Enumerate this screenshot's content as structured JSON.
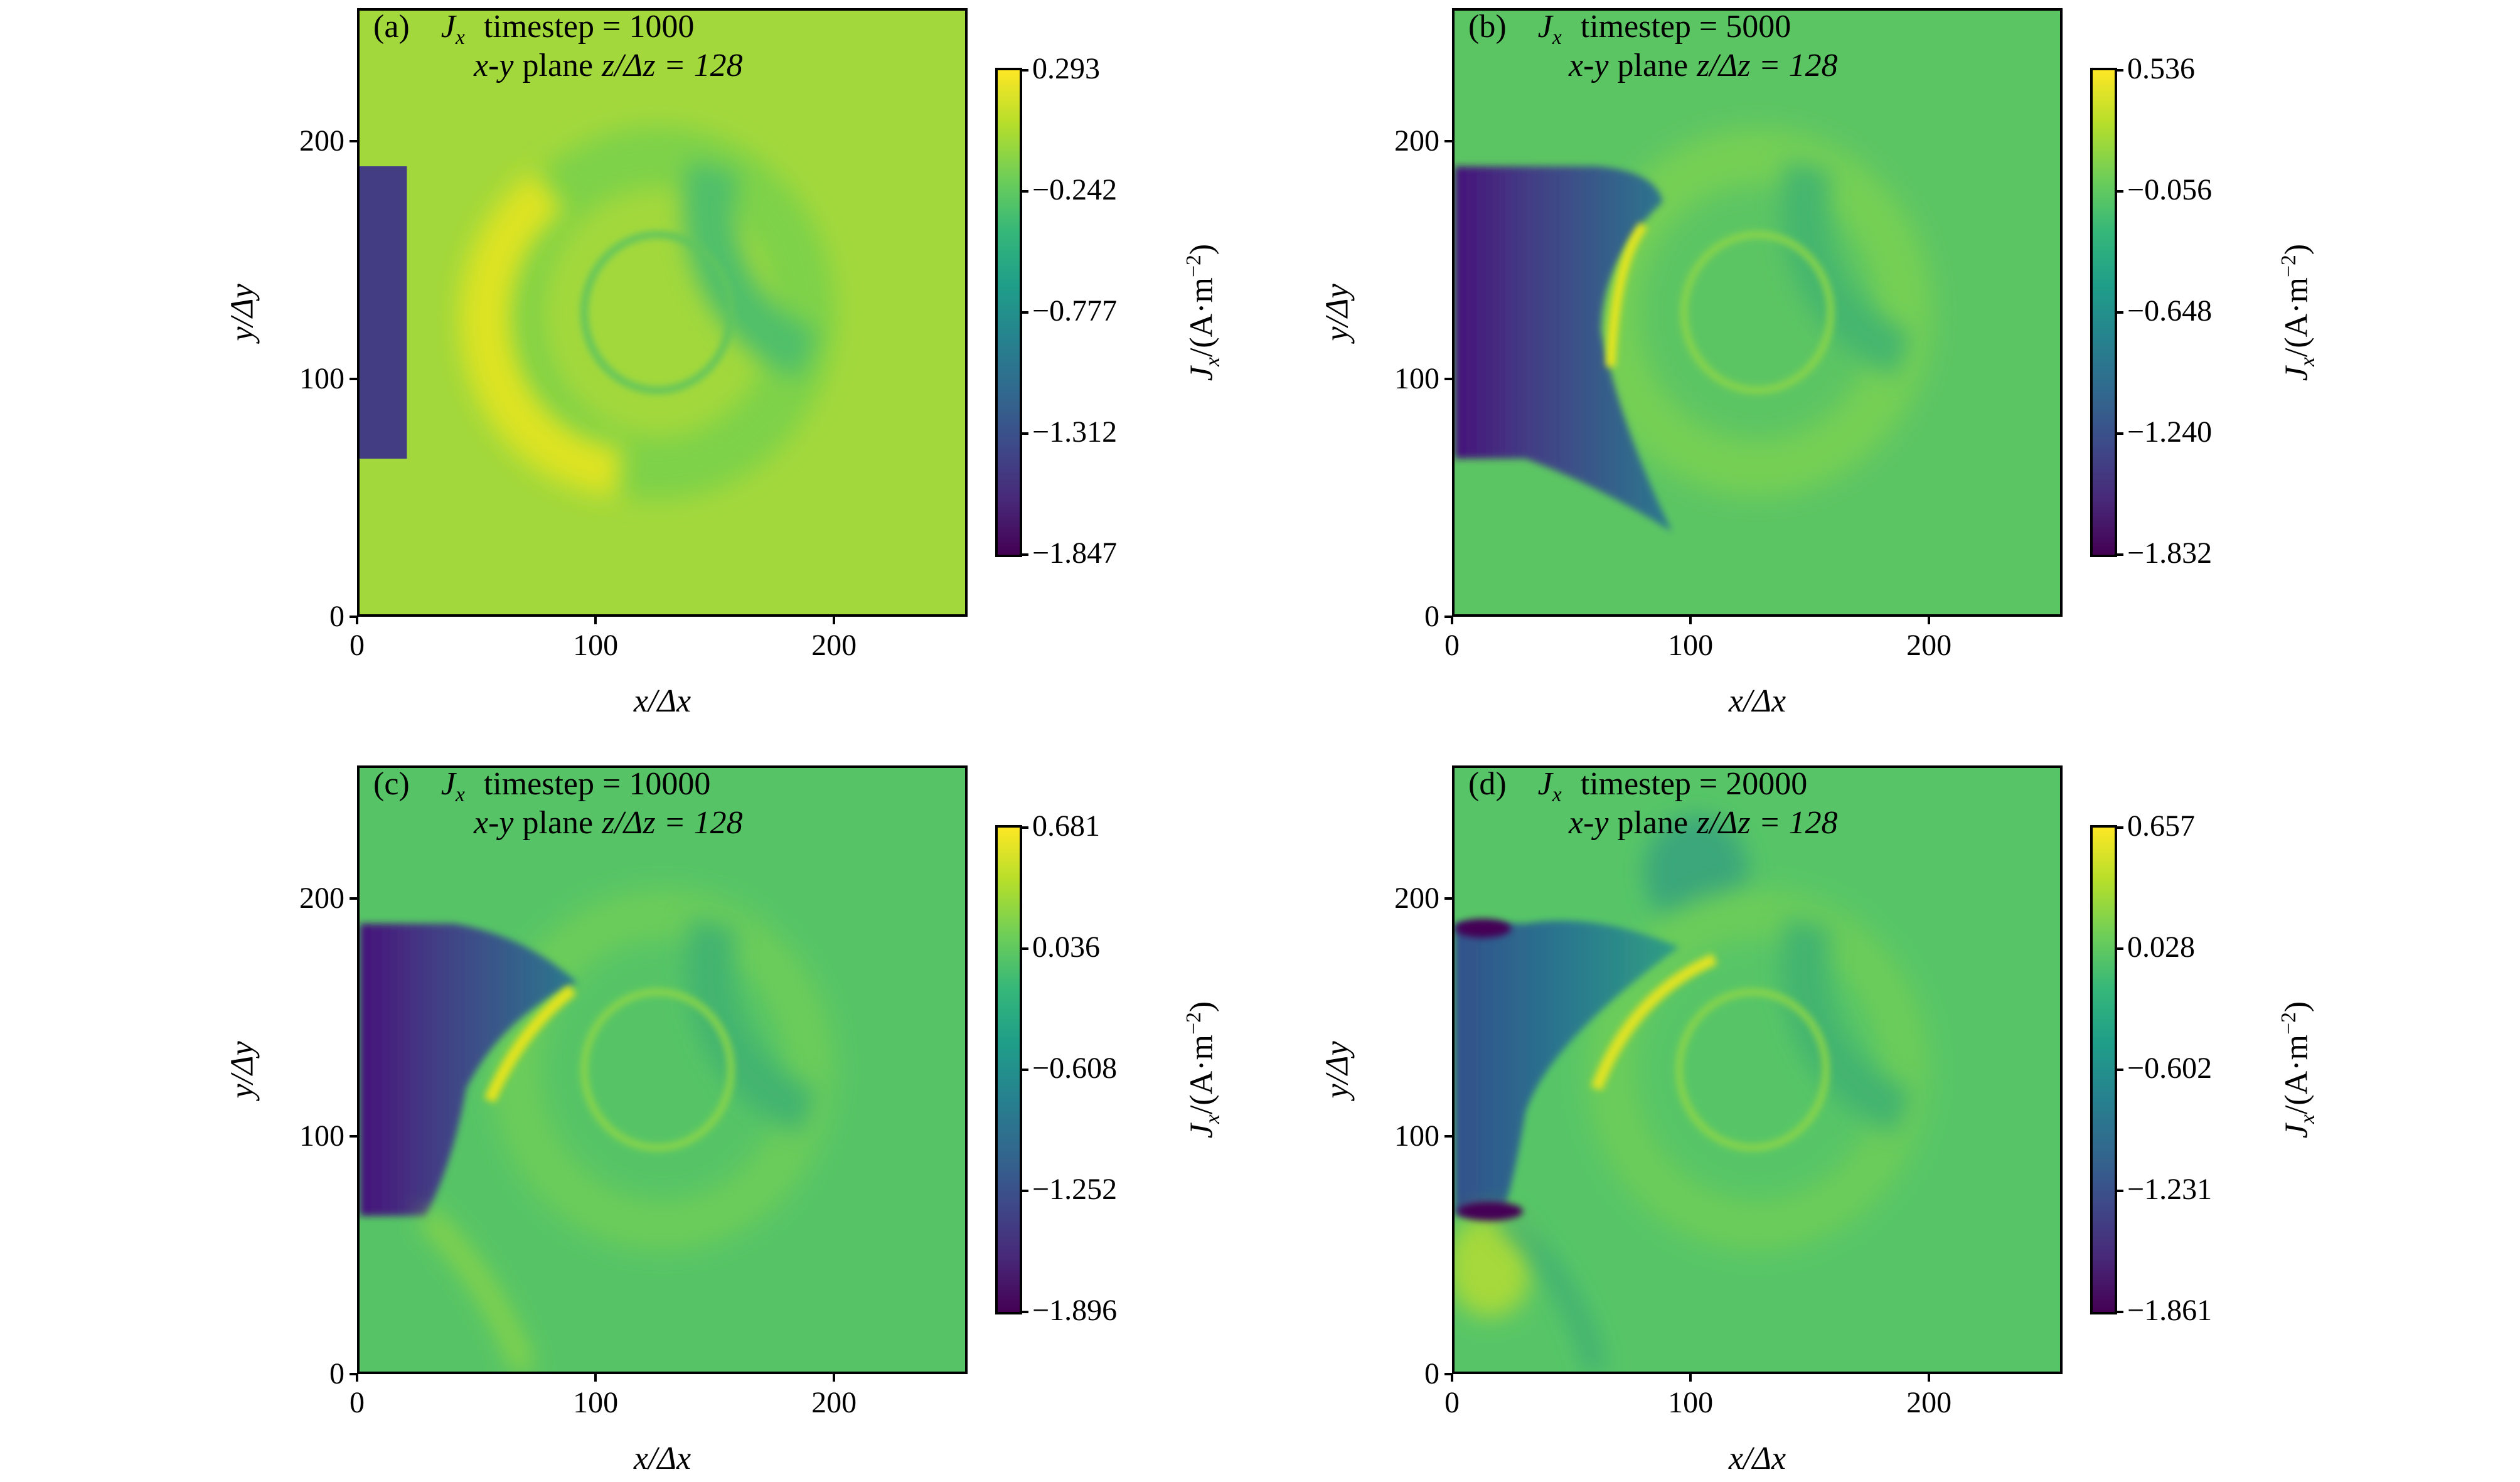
{
  "chart_data": [
    {
      "type": "heatmap",
      "panel": "(a)",
      "quantity": "J",
      "quantity_sub": "x",
      "timestep": "timestep = 1000",
      "plane_prefix": "x",
      "plane_mid": "-",
      "plane_suffix": "y",
      "plane_word": "plane",
      "slice": "z/Δz = 128",
      "xlabel": "x/Δx",
      "ylabel": "y/Δy",
      "xlim": [
        0,
        256
      ],
      "ylim": [
        0,
        256
      ],
      "xticks": [
        "0",
        "100",
        "200"
      ],
      "yticks": [
        "0",
        "100",
        "200"
      ],
      "colorbar": {
        "label_main": "J",
        "label_sub": "x",
        "label_rest": "/(A·m",
        "label_sup": "−2",
        "label_close": ")",
        "ticks": [
          "0.293",
          "−0.242",
          "−0.777",
          "−1.312",
          "−1.847"
        ],
        "range": [
          -1.847,
          0.293
        ],
        "colormap": "viridis"
      },
      "background": "#a2d83c"
    },
    {
      "type": "heatmap",
      "panel": "(b)",
      "quantity": "J",
      "quantity_sub": "x",
      "timestep": "timestep = 5000",
      "plane_prefix": "x",
      "plane_mid": "-",
      "plane_suffix": "y",
      "plane_word": "plane",
      "slice": "z/Δz = 128",
      "xlabel": "x/Δx",
      "ylabel": "y/Δy",
      "xlim": [
        0,
        256
      ],
      "ylim": [
        0,
        256
      ],
      "xticks": [
        "0",
        "100",
        "200"
      ],
      "yticks": [
        "0",
        "100",
        "200"
      ],
      "colorbar": {
        "label_main": "J",
        "label_sub": "x",
        "label_rest": "/(A·m",
        "label_sup": "−2",
        "label_close": ")",
        "ticks": [
          "0.536",
          "−0.056",
          "−0.648",
          "−1.240",
          "−1.832"
        ],
        "range": [
          -1.832,
          0.536
        ],
        "colormap": "viridis"
      },
      "background": "#5cc563"
    },
    {
      "type": "heatmap",
      "panel": "(c)",
      "quantity": "J",
      "quantity_sub": "x",
      "timestep": "timestep = 10000",
      "plane_prefix": "x",
      "plane_mid": "-",
      "plane_suffix": "y",
      "plane_word": "plane",
      "slice": "z/Δz = 128",
      "xlabel": "x/Δx",
      "ylabel": "y/Δy",
      "xlim": [
        0,
        256
      ],
      "ylim": [
        0,
        256
      ],
      "xticks": [
        "0",
        "100",
        "200"
      ],
      "yticks": [
        "0",
        "100",
        "200"
      ],
      "colorbar": {
        "label_main": "J",
        "label_sub": "x",
        "label_rest": "/(A·m",
        "label_sup": "−2",
        "label_close": ")",
        "ticks": [
          "0.681",
          "0.036",
          "−0.608",
          "−1.252",
          "−1.896"
        ],
        "range": [
          -1.896,
          0.681
        ],
        "colormap": "viridis"
      },
      "background": "#56c466"
    },
    {
      "type": "heatmap",
      "panel": "(d)",
      "quantity": "J",
      "quantity_sub": "x",
      "timestep": "timestep = 20000",
      "plane_prefix": "x",
      "plane_mid": "-",
      "plane_suffix": "y",
      "plane_word": "plane",
      "slice": "z/Δz = 128",
      "xlabel": "x/Δx",
      "ylabel": "y/Δy",
      "xlim": [
        0,
        256
      ],
      "ylim": [
        0,
        256
      ],
      "xticks": [
        "0",
        "100",
        "200"
      ],
      "yticks": [
        "0",
        "100",
        "200"
      ],
      "colorbar": {
        "label_main": "J",
        "label_sub": "x",
        "label_rest": "/(A·m",
        "label_sup": "−2",
        "label_close": ")",
        "ticks": [
          "0.657",
          "0.028",
          "−0.602",
          "−1.231",
          "−1.861"
        ],
        "range": [
          -1.861,
          0.657
        ],
        "colormap": "viridis"
      },
      "background": "#57c567"
    }
  ]
}
